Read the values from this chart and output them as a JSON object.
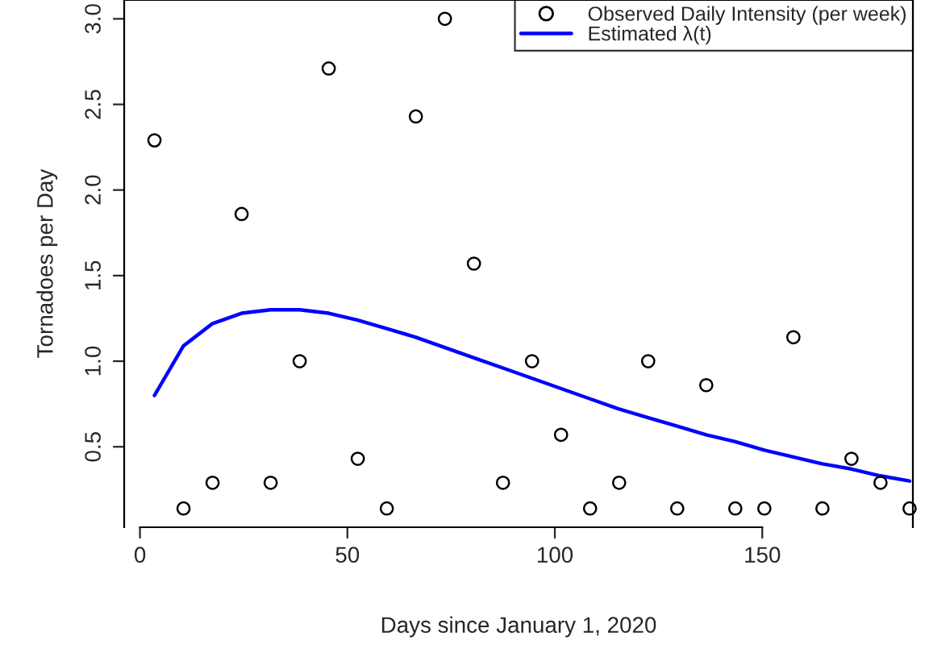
{
  "chart_data": {
    "type": "scatter",
    "xlabel": "Days since January 1, 2020",
    "ylabel": "Tornadoes per Day",
    "xlim": [
      -3.8,
      186.3
    ],
    "ylim": [
      0.03,
      3.11
    ],
    "xticks": [
      0,
      50,
      100,
      150
    ],
    "yticks": [
      0.5,
      {
        "value": 1,
        "label": "1.0"
      },
      1.5,
      {
        "value": 2,
        "label": "2.0"
      },
      2.5,
      {
        "value": 3,
        "label": "3.0"
      }
    ],
    "grid": false,
    "legend": "top right",
    "series": [
      {
        "name": "Observed Daily Intensity (per week)",
        "marker": "circle",
        "color": "#000000",
        "x": [
          3.5,
          10.5,
          17.5,
          24.5,
          31.5,
          38.5,
          45.5,
          52.5,
          59.5,
          66.5,
          73.5,
          80.5,
          87.5,
          94.5,
          101.5,
          108.5,
          115.5,
          122.5,
          129.5,
          136.5,
          143.5,
          150.5,
          157.5,
          164.5,
          171.5,
          178.5,
          185.5
        ],
        "values": [
          2.29,
          0.14,
          0.29,
          1.86,
          0.29,
          1.0,
          2.71,
          0.43,
          0.14,
          2.43,
          3.0,
          1.57,
          0.29,
          1.0,
          0.57,
          0.14,
          0.29,
          1.0,
          0.14,
          0.86,
          0.14,
          0.14,
          1.14,
          0.14,
          0.43,
          0.29,
          0.14
        ]
      },
      {
        "name": "Estimated λ(t)",
        "type": "line",
        "marker": "none",
        "line_style": "solid",
        "color": "#0000ff",
        "x": [
          3.5,
          10.5,
          17.5,
          24.5,
          31.5,
          38.5,
          45.5,
          52.5,
          59.5,
          66.5,
          73.5,
          80.5,
          87.5,
          94.5,
          101.5,
          108.5,
          115.5,
          122.5,
          129.5,
          136.5,
          143.5,
          150.5,
          157.5,
          164.5,
          171.5,
          178.5,
          185.5
        ],
        "values": [
          0.8,
          1.09,
          1.22,
          1.28,
          1.3,
          1.3,
          1.28,
          1.24,
          1.19,
          1.14,
          1.08,
          1.02,
          0.96,
          0.9,
          0.84,
          0.78,
          0.72,
          0.67,
          0.62,
          0.57,
          0.53,
          0.48,
          0.44,
          0.4,
          0.37,
          0.33,
          0.3
        ]
      }
    ]
  }
}
